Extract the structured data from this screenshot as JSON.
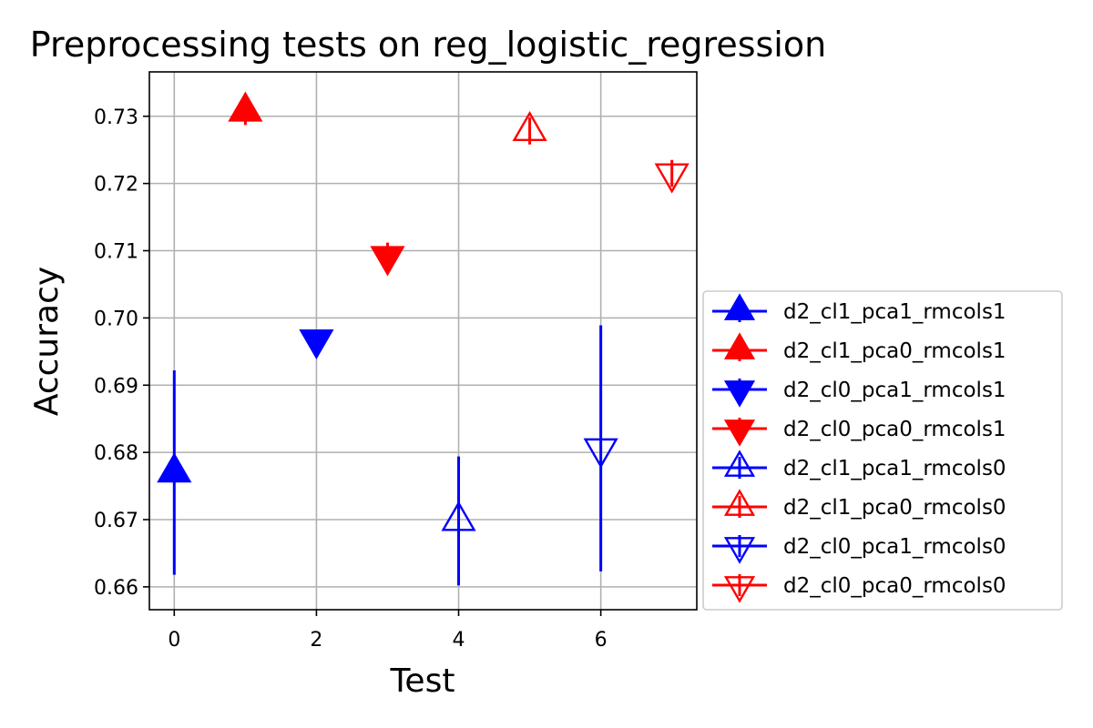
{
  "chart_data": {
    "type": "scatter",
    "title": "Preprocessing tests on reg_logistic_regression",
    "xlabel": "Test",
    "ylabel": "Accuracy",
    "xlim": [
      -0.35,
      7.35
    ],
    "ylim": [
      0.6566,
      0.7366
    ],
    "xticks": [
      0,
      2,
      4,
      6
    ],
    "yticks": [
      0.66,
      0.67,
      0.68,
      0.69,
      0.7,
      0.71,
      0.72,
      0.73
    ],
    "ytick_labels": [
      "0.66",
      "0.67",
      "0.68",
      "0.69",
      "0.70",
      "0.71",
      "0.72",
      "0.73"
    ],
    "grid": true,
    "legend_position": "outside right",
    "series": [
      {
        "name": "d2_cl1_pca1_rmcols1",
        "x": 0,
        "y": 0.677,
        "err": 0.0152,
        "color": "#0000ff",
        "marker": "triangle-up",
        "filled": true
      },
      {
        "name": "d2_cl1_pca0_rmcols1",
        "x": 1,
        "y": 0.7307,
        "err": 0.002,
        "color": "#ff0000",
        "marker": "triangle-up",
        "filled": true
      },
      {
        "name": "d2_cl0_pca1_rmcols1",
        "x": 2,
        "y": 0.6968,
        "err": 0.0012,
        "color": "#0000ff",
        "marker": "triangle-down",
        "filled": true
      },
      {
        "name": "d2_cl0_pca0_rmcols1",
        "x": 3,
        "y": 0.7092,
        "err": 0.002,
        "color": "#ff0000",
        "marker": "triangle-down",
        "filled": true
      },
      {
        "name": "d2_cl1_pca1_rmcols0",
        "x": 4,
        "y": 0.6698,
        "err": 0.0096,
        "color": "#0000ff",
        "marker": "triangle-up",
        "filled": false
      },
      {
        "name": "d2_cl1_pca0_rmcols0",
        "x": 5,
        "y": 0.7278,
        "err": 0.002,
        "color": "#ff0000",
        "marker": "triangle-up",
        "filled": false
      },
      {
        "name": "d2_cl0_pca1_rmcols0",
        "x": 6,
        "y": 0.6806,
        "err": 0.0183,
        "color": "#0000ff",
        "marker": "triangle-down",
        "filled": false
      },
      {
        "name": "d2_cl0_pca0_rmcols0",
        "x": 7,
        "y": 0.7215,
        "err": 0.002,
        "color": "#ff0000",
        "marker": "triangle-down",
        "filled": false
      }
    ]
  }
}
